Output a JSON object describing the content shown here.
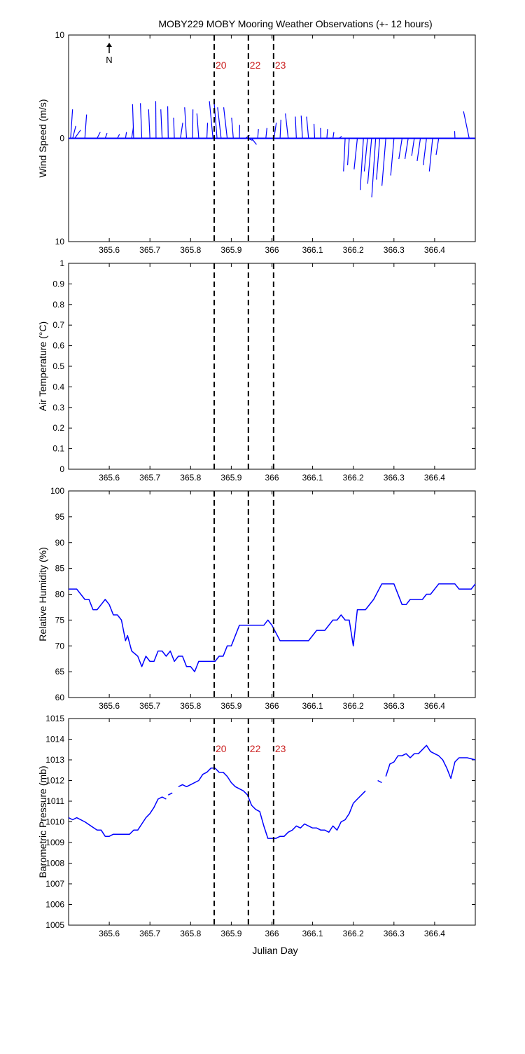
{
  "figure": {
    "title": "MOBY229 MOBY Mooring Weather Observations (+- 12 hours)",
    "north_label": "N",
    "xlabel": "Julian Day",
    "colors": {
      "line": "#0000ff",
      "marker_text": "#cc2222",
      "axis": "#000000"
    }
  },
  "chart_data": [
    {
      "type": "quiver",
      "title": "MOBY229 MOBY Mooring Weather Observations (+- 12 hours)",
      "ylabel": "Wind Speed (m/s)",
      "xlabel": "Julian Day",
      "xlim": [
        365.5,
        366.5
      ],
      "ylim": [
        -10,
        10
      ],
      "ytick_labels": [
        "10",
        "0",
        "10"
      ],
      "xtick_labels": [
        "365.6",
        "365.7",
        "365.8",
        "365.9",
        "366",
        "366.1",
        "366.2",
        "366.3",
        "366.4"
      ],
      "vertical_markers": [
        {
          "x": 365.858,
          "label": "20"
        },
        {
          "x": 365.942,
          "label": "22"
        },
        {
          "x": 366.004,
          "label": "23"
        }
      ],
      "vectors": [
        {
          "x": 365.505,
          "u": 0.3,
          "v": 2.8
        },
        {
          "x": 365.51,
          "u": 0.2,
          "v": 1.2
        },
        {
          "x": 365.515,
          "u": 0.25,
          "v": 0.8
        },
        {
          "x": 365.54,
          "u": 0.25,
          "v": 2.3
        },
        {
          "x": 365.57,
          "u": 0.15,
          "v": 0.6
        },
        {
          "x": 365.59,
          "u": 0.1,
          "v": 0.5
        },
        {
          "x": 365.62,
          "u": 0.1,
          "v": 0.4
        },
        {
          "x": 365.64,
          "u": 0.08,
          "v": 0.6
        },
        {
          "x": 365.655,
          "u": 0.15,
          "v": 1.1
        },
        {
          "x": 365.66,
          "u": 0.25,
          "v": 3.3
        },
        {
          "x": 365.68,
          "u": 0.25,
          "v": 3.4
        },
        {
          "x": 365.7,
          "u": 0.2,
          "v": 2.8
        },
        {
          "x": 365.715,
          "u": 0.3,
          "v": 3.6
        },
        {
          "x": 365.73,
          "u": 0.2,
          "v": 2.8
        },
        {
          "x": 365.745,
          "u": 0.25,
          "v": 3.1
        },
        {
          "x": 365.76,
          "u": 0.15,
          "v": 2.0
        },
        {
          "x": 365.775,
          "u": 0.2,
          "v": 1.5
        },
        {
          "x": 365.79,
          "u": 0.2,
          "v": 3.0
        },
        {
          "x": 365.805,
          "u": 0.25,
          "v": 2.8
        },
        {
          "x": 365.82,
          "u": 0.15,
          "v": 2.4
        },
        {
          "x": 365.84,
          "u": 0.15,
          "v": 1.5
        },
        {
          "x": 365.855,
          "u": 0.2,
          "v": 3.6
        },
        {
          "x": 365.865,
          "u": 0.2,
          "v": 3.3
        },
        {
          "x": 365.875,
          "u": 0.15,
          "v": 3.0
        },
        {
          "x": 365.89,
          "u": 0.15,
          "v": 3.0
        },
        {
          "x": 365.905,
          "u": 0.12,
          "v": 2.0
        },
        {
          "x": 365.92,
          "u": 0.12,
          "v": 1.3
        },
        {
          "x": 365.935,
          "u": 0.15,
          "v": 0.3
        },
        {
          "x": 365.94,
          "u": 0.15,
          "v": -0.2
        },
        {
          "x": 365.95,
          "u": 0.15,
          "v": -0.6
        },
        {
          "x": 365.965,
          "u": 0.1,
          "v": 0.9
        },
        {
          "x": 365.985,
          "u": 0.12,
          "v": 1.0
        },
        {
          "x": 366.005,
          "u": 0.2,
          "v": 1.5
        },
        {
          "x": 366.02,
          "u": 0.18,
          "v": 1.8
        },
        {
          "x": 366.04,
          "u": 0.12,
          "v": 2.4
        },
        {
          "x": 366.06,
          "u": 0.15,
          "v": 2.1
        },
        {
          "x": 366.075,
          "u": 0.15,
          "v": 2.2
        },
        {
          "x": 366.09,
          "u": 0.12,
          "v": 2.1
        },
        {
          "x": 366.105,
          "u": 0.1,
          "v": 1.4
        },
        {
          "x": 366.12,
          "u": 0.08,
          "v": 1.0
        },
        {
          "x": 366.135,
          "u": 0.1,
          "v": 0.9
        },
        {
          "x": 366.15,
          "u": 0.08,
          "v": 0.6
        },
        {
          "x": 366.165,
          "u": 0.1,
          "v": 0.2
        },
        {
          "x": 366.18,
          "u": -0.05,
          "v": -3.2
        },
        {
          "x": 366.19,
          "u": -0.05,
          "v": -2.6
        },
        {
          "x": 366.21,
          "u": -0.1,
          "v": -3.0
        },
        {
          "x": 366.225,
          "u": -0.1,
          "v": -5.0
        },
        {
          "x": 366.235,
          "u": -0.1,
          "v": -3.2
        },
        {
          "x": 366.245,
          "u": -0.12,
          "v": -4.4
        },
        {
          "x": 366.255,
          "u": -0.12,
          "v": -5.7
        },
        {
          "x": 366.265,
          "u": -0.1,
          "v": -4.0
        },
        {
          "x": 366.28,
          "u": -0.12,
          "v": -4.6
        },
        {
          "x": 366.3,
          "u": -0.1,
          "v": -3.6
        },
        {
          "x": 366.32,
          "u": -0.1,
          "v": -2.0
        },
        {
          "x": 366.335,
          "u": -0.1,
          "v": -2.0
        },
        {
          "x": 366.35,
          "u": -0.08,
          "v": -1.7
        },
        {
          "x": 366.365,
          "u": -0.1,
          "v": -2.2
        },
        {
          "x": 366.38,
          "u": -0.1,
          "v": -2.6
        },
        {
          "x": 366.395,
          "u": -0.1,
          "v": -3.2
        },
        {
          "x": 366.41,
          "u": -0.08,
          "v": -1.6
        },
        {
          "x": 366.45,
          "u": 0.05,
          "v": 0.7
        },
        {
          "x": 366.485,
          "u": 0.05,
          "v": 2.6
        }
      ]
    },
    {
      "type": "line",
      "ylabel": "Air Temperature (°C)",
      "xlim": [
        365.5,
        366.5
      ],
      "ylim": [
        0,
        1
      ],
      "ytick_labels": [
        "0",
        "0.1",
        "0.2",
        "0.3",
        "0.4",
        "0.5",
        "0.6",
        "0.7",
        "0.8",
        "0.9",
        "1"
      ],
      "xtick_labels": [
        "365.6",
        "365.7",
        "365.8",
        "365.9",
        "366",
        "366.1",
        "366.2",
        "366.3",
        "366.4"
      ],
      "vertical_markers": [
        {
          "x": 365.858
        },
        {
          "x": 365.942
        },
        {
          "x": 366.004
        }
      ],
      "x": [],
      "y": []
    },
    {
      "type": "line",
      "ylabel": "Relative Humidity (%)",
      "xlim": [
        365.5,
        366.5
      ],
      "ylim": [
        60,
        100
      ],
      "ytick_labels": [
        "60",
        "65",
        "70",
        "75",
        "80",
        "85",
        "90",
        "95",
        "100"
      ],
      "xtick_labels": [
        "365.6",
        "365.7",
        "365.8",
        "365.9",
        "366",
        "366.1",
        "366.2",
        "366.3",
        "366.4"
      ],
      "vertical_markers": [
        {
          "x": 365.858
        },
        {
          "x": 365.942
        },
        {
          "x": 366.004
        }
      ],
      "segments": [
        [
          [
            365.5,
            81
          ],
          [
            365.52,
            81
          ],
          [
            365.53,
            80
          ],
          [
            365.54,
            79
          ],
          [
            365.55,
            79
          ],
          [
            365.56,
            77
          ],
          [
            365.57,
            77
          ],
          [
            365.58,
            78
          ],
          [
            365.59,
            79
          ],
          [
            365.6,
            78
          ],
          [
            365.61,
            76
          ],
          [
            365.62,
            76
          ],
          [
            365.63,
            75
          ],
          [
            365.64,
            71
          ],
          [
            365.645,
            72
          ],
          [
            365.655,
            69
          ],
          [
            365.67,
            68
          ],
          [
            365.68,
            66
          ],
          [
            365.69,
            68
          ],
          [
            365.7,
            67
          ],
          [
            365.71,
            67
          ],
          [
            365.72,
            69
          ],
          [
            365.73,
            69
          ],
          [
            365.74,
            68
          ],
          [
            365.75,
            69
          ],
          [
            365.76,
            67
          ],
          [
            365.77,
            68
          ],
          [
            365.78,
            68
          ],
          [
            365.79,
            66
          ],
          [
            365.8,
            66
          ],
          [
            365.81,
            65
          ],
          [
            365.82,
            67
          ],
          [
            365.84,
            67
          ],
          [
            365.85,
            67
          ],
          [
            365.86,
            67
          ],
          [
            365.87,
            68
          ],
          [
            365.88,
            68
          ],
          [
            365.89,
            70
          ],
          [
            365.9,
            70
          ],
          [
            365.91,
            72
          ],
          [
            365.92,
            74
          ],
          [
            365.93,
            74
          ],
          [
            365.98,
            74
          ],
          [
            365.99,
            75
          ],
          [
            366.0,
            74
          ],
          [
            366.02,
            71
          ],
          [
            366.09,
            71
          ],
          [
            366.11,
            73
          ],
          [
            366.13,
            73
          ],
          [
            366.15,
            75
          ],
          [
            366.16,
            75
          ],
          [
            366.17,
            76
          ],
          [
            366.18,
            75
          ],
          [
            366.19,
            75
          ],
          [
            366.2,
            70
          ],
          [
            366.21,
            77
          ],
          [
            366.23,
            77
          ],
          [
            366.25,
            79
          ],
          [
            366.27,
            82
          ],
          [
            366.3,
            82
          ],
          [
            366.32,
            78
          ],
          [
            366.33,
            78
          ],
          [
            366.34,
            79
          ],
          [
            366.37,
            79
          ],
          [
            366.38,
            80
          ],
          [
            366.39,
            80
          ],
          [
            366.41,
            82
          ],
          [
            366.45,
            82
          ],
          [
            366.46,
            81
          ],
          [
            366.49,
            81
          ],
          [
            366.5,
            82
          ]
        ]
      ]
    },
    {
      "type": "line",
      "ylabel": "Barometric Pressure (mb)",
      "xlabel": "Julian Day",
      "xlim": [
        365.5,
        366.5
      ],
      "ylim": [
        1005,
        1015
      ],
      "ytick_labels": [
        "1005",
        "1006",
        "1007",
        "1008",
        "1009",
        "1010",
        "1011",
        "1012",
        "1013",
        "1014",
        "1015"
      ],
      "xtick_labels": [
        "365.6",
        "365.7",
        "365.8",
        "365.9",
        "366",
        "366.1",
        "366.2",
        "366.3",
        "366.4"
      ],
      "vertical_markers": [
        {
          "x": 365.858,
          "label": "20"
        },
        {
          "x": 365.942,
          "label": "22"
        },
        {
          "x": 366.004,
          "label": "23"
        }
      ],
      "segments": [
        [
          [
            365.5,
            1010.2
          ],
          [
            365.51,
            1010.1
          ],
          [
            365.52,
            1010.2
          ],
          [
            365.54,
            1010.0
          ],
          [
            365.57,
            1009.6
          ],
          [
            365.58,
            1009.6
          ],
          [
            365.59,
            1009.3
          ],
          [
            365.6,
            1009.3
          ],
          [
            365.61,
            1009.4
          ],
          [
            365.64,
            1009.4
          ],
          [
            365.65,
            1009.4
          ],
          [
            365.66,
            1009.6
          ],
          [
            365.67,
            1009.6
          ],
          [
            365.69,
            1010.2
          ],
          [
            365.7,
            1010.4
          ],
          [
            365.71,
            1010.7
          ],
          [
            365.72,
            1011.1
          ],
          [
            365.73,
            1011.2
          ],
          [
            365.74,
            1011.1
          ]
        ],
        [
          [
            365.745,
            1011.3
          ],
          [
            365.755,
            1011.4
          ]
        ],
        [
          [
            365.77,
            1011.7
          ],
          [
            365.78,
            1011.8
          ],
          [
            365.79,
            1011.7
          ],
          [
            365.8,
            1011.8
          ],
          [
            365.82,
            1012.0
          ],
          [
            365.83,
            1012.3
          ],
          [
            365.84,
            1012.4
          ],
          [
            365.85,
            1012.6
          ],
          [
            365.86,
            1012.6
          ],
          [
            365.87,
            1012.4
          ],
          [
            365.88,
            1012.4
          ],
          [
            365.89,
            1012.2
          ],
          [
            365.9,
            1011.9
          ],
          [
            365.91,
            1011.7
          ],
          [
            365.92,
            1011.6
          ],
          [
            365.93,
            1011.5
          ],
          [
            365.94,
            1011.3
          ],
          [
            365.95,
            1010.8
          ],
          [
            365.96,
            1010.6
          ],
          [
            365.97,
            1010.5
          ],
          [
            365.98,
            1009.8
          ],
          [
            365.99,
            1009.2
          ],
          [
            366.0,
            1009.2
          ],
          [
            366.01,
            1009.2
          ],
          [
            366.02,
            1009.3
          ],
          [
            366.03,
            1009.3
          ],
          [
            366.04,
            1009.5
          ],
          [
            366.05,
            1009.6
          ],
          [
            366.06,
            1009.8
          ],
          [
            366.07,
            1009.7
          ],
          [
            366.08,
            1009.9
          ],
          [
            366.09,
            1009.8
          ],
          [
            366.1,
            1009.7
          ],
          [
            366.11,
            1009.7
          ],
          [
            366.12,
            1009.6
          ],
          [
            366.13,
            1009.6
          ],
          [
            366.14,
            1009.5
          ],
          [
            366.15,
            1009.8
          ],
          [
            366.16,
            1009.6
          ],
          [
            366.17,
            1010.0
          ],
          [
            366.18,
            1010.1
          ],
          [
            366.19,
            1010.4
          ],
          [
            366.2,
            1010.9
          ],
          [
            366.21,
            1011.1
          ],
          [
            366.22,
            1011.3
          ],
          [
            366.23,
            1011.5
          ]
        ],
        [
          [
            366.26,
            1012.0
          ],
          [
            366.27,
            1011.9
          ]
        ],
        [
          [
            366.28,
            1012.2
          ],
          [
            366.29,
            1012.8
          ],
          [
            366.3,
            1012.9
          ],
          [
            366.31,
            1013.2
          ],
          [
            366.32,
            1013.2
          ],
          [
            366.33,
            1013.3
          ],
          [
            366.34,
            1013.1
          ],
          [
            366.35,
            1013.3
          ],
          [
            366.36,
            1013.3
          ],
          [
            366.37,
            1013.5
          ],
          [
            366.38,
            1013.7
          ],
          [
            366.39,
            1013.4
          ],
          [
            366.4,
            1013.3
          ],
          [
            366.41,
            1013.2
          ],
          [
            366.42,
            1013.0
          ],
          [
            366.43,
            1012.6
          ],
          [
            366.44,
            1012.1
          ],
          [
            366.45,
            1012.9
          ],
          [
            366.46,
            1013.1
          ],
          [
            366.48,
            1013.1
          ],
          [
            366.5,
            1013.0
          ]
        ]
      ]
    }
  ]
}
